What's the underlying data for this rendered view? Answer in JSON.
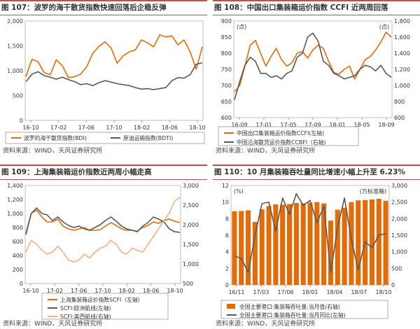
{
  "page": {
    "bg": "#ffffff"
  },
  "panels": [
    {
      "title": "图 107：波罗的海干散货指数快速回落后企稳反弹",
      "source": "资料来源：WIND，天风证券研究所"
    },
    {
      "title": "图 108：中国出口集装箱运价指数 CCFI 近两周回落",
      "source": "资料来源：WIND，天风证券研究所"
    },
    {
      "title": "图 109：上海集装箱运价指数近两周小幅走高",
      "source": "资料来源：WIND，天风证券研究所"
    },
    {
      "title": "图 110：10 月集装箱吞吐量同比增速小幅上升至 6.23%",
      "source": "资料来源：WIND，天风证券研究所"
    }
  ],
  "chart_data": [
    {
      "type": "line",
      "x_ticks": [
        "16-10",
        "17-02",
        "17-06",
        "17-10",
        "18-02",
        "18-06",
        "18-10"
      ],
      "ylim": [
        0,
        2000
      ],
      "y_ticks": [
        "0",
        "500",
        "1,000",
        "1,500",
        "2,000"
      ],
      "grid": false,
      "legend_position": "bottom",
      "series": [
        {
          "name": "波罗的海干散货指数(BDI)",
          "color": "#e36c09",
          "values": [
            880,
            1230,
            1180,
            960,
            920,
            1220,
            1100,
            860,
            880,
            930,
            1080,
            1350,
            1490,
            1580,
            1460,
            1150,
            1300,
            1380,
            1420,
            1620,
            1560,
            1480,
            1720,
            1680,
            1700,
            1520,
            1620,
            1380,
            1030,
            1480
          ]
        },
        {
          "name": "原油运输指数(BDTI)",
          "color": "#595959",
          "values": [
            780,
            930,
            980,
            900,
            870,
            830,
            870,
            820,
            780,
            720,
            740,
            700,
            760,
            800,
            770,
            740,
            720,
            700,
            660,
            630,
            640,
            620,
            640,
            660,
            800,
            860,
            850,
            920,
            1130,
            1160
          ]
        }
      ]
    },
    {
      "type": "line",
      "x_ticks": [
        "16-09",
        "17-01",
        "17-05",
        "17-09",
        "18-01",
        "18-05",
        "18-09"
      ],
      "ylim_left": [
        600,
        900
      ],
      "ylim_right": [
        600,
        1800
      ],
      "y_ticks_left": [
        "600",
        "650",
        "700",
        "750",
        "800",
        "850",
        "900"
      ],
      "y_ticks_right": [
        "600",
        "800",
        "1,000",
        "1,200",
        "1,400",
        "1,600",
        "1,800"
      ],
      "unit_left": "(点)",
      "unit_right": "(点)",
      "grid": false,
      "legend_position": "bottom",
      "series": [
        {
          "name": "中国出口集装箱运价指数CCFI(左轴)",
          "axis": "left",
          "color": "#e36c09",
          "values": [
            680,
            700,
            760,
            825,
            840,
            800,
            760,
            790,
            815,
            780,
            760,
            770,
            800,
            805,
            785,
            810,
            825,
            815,
            775,
            740,
            735,
            750,
            760,
            720,
            750,
            780,
            790,
            810,
            835,
            865,
            850
          ]
        },
        {
          "name": "中国沿海散货运价指数CCBFI（右轴)",
          "axis": "right",
          "color": "#595959",
          "values": [
            820,
            1050,
            1250,
            1350,
            1300,
            1150,
            1150,
            1100,
            1120,
            1080,
            1150,
            1180,
            1350,
            1400,
            1600,
            1650,
            1550,
            1300,
            1250,
            1150,
            1120,
            1080,
            1100,
            1120,
            1200,
            1250,
            1230,
            1180,
            1250,
            1150,
            1100
          ]
        }
      ]
    },
    {
      "type": "line",
      "x_ticks": [
        "16-10",
        "17-02",
        "17-06",
        "17-10",
        "18-02",
        "18-06",
        "18-10"
      ],
      "ylim_left": [
        0,
        1400
      ],
      "ylim_right": [
        500,
        3000
      ],
      "y_ticks_left": [
        "0",
        "200",
        "400",
        "600",
        "800",
        "1,000",
        "1,200",
        "1,400"
      ],
      "y_ticks_right": [
        "500",
        "1,000",
        "1,500",
        "2,000",
        "2,500",
        "3,000"
      ],
      "grid": false,
      "legend_position": "bottom",
      "series": [
        {
          "name": "上海集装箱运价指数SCFI（左轴）",
          "axis": "left",
          "color": "#e36c09",
          "values": [
            720,
            1000,
            1050,
            950,
            880,
            880,
            920,
            820,
            780,
            760,
            780,
            800,
            760,
            760,
            770,
            820,
            870,
            830,
            780,
            760,
            760,
            750,
            800,
            830,
            880,
            860,
            900,
            920,
            890,
            870
          ]
        },
        {
          "name": "SCFI:欧洲航线(左轴)",
          "axis": "left",
          "color": "#595959",
          "values": [
            700,
            1000,
            1080,
            1000,
            980,
            900,
            950,
            880,
            830,
            800,
            820,
            780,
            760,
            800,
            840,
            900,
            950,
            890,
            820,
            780,
            760,
            740,
            820,
            870,
            950,
            920,
            880,
            780,
            740,
            730
          ]
        },
        {
          "name": "SCFI:美西航线(右轴)",
          "axis": "right",
          "color": "#f4b183",
          "values": [
            1300,
            1600,
            1500,
            1350,
            1250,
            1300,
            1450,
            1300,
            1100,
            1050,
            1100,
            1250,
            1150,
            1300,
            1400,
            1450,
            1600,
            1500,
            1300,
            1250,
            1400,
            1350,
            1300,
            1500,
            1700,
            1900,
            2100,
            2300,
            2600,
            2700
          ]
        }
      ]
    },
    {
      "type": "bar",
      "x_ticks": [
        "16/11",
        "17/03",
        "17/06",
        "18/01",
        "18/04",
        "18/07",
        "18/10"
      ],
      "ylim_left": [
        0,
        12
      ],
      "ylim_right": [
        0,
        3000
      ],
      "y_ticks_left": [
        "0",
        "2",
        "4",
        "6",
        "8",
        "10",
        "12"
      ],
      "y_ticks_right": [
        "0",
        "500",
        "1,000",
        "1,500",
        "2,000",
        "2,500",
        "3,000"
      ],
      "unit_left": "(%)",
      "unit_right": "(万标准箱)",
      "grid": false,
      "legend_position": "bottom",
      "series": [
        {
          "name": "全国主要港口:集装箱吞吐量:当月值(右轴)",
          "axis": "right",
          "kind": "bar",
          "color": "#e36c09",
          "values": [
            2220,
            2230,
            2250,
            1900,
            2280,
            2380,
            2430,
            2420,
            2440,
            2470,
            2460,
            2480,
            2500,
            2460,
            1940,
            2270,
            2330,
            2500,
            2550,
            2560,
            2580,
            2600,
            2540
          ]
        },
        {
          "name": "全国主要港口:集装箱吞吐量:当月同比(左轴)",
          "axis": "left",
          "kind": "line",
          "color": "#595959",
          "values": [
            3.5,
            3.2,
            1.5,
            6.0,
            9.8,
            10.0,
            6.5,
            10.5,
            8.5,
            11.0,
            9.6,
            10.2,
            7.5,
            9.5,
            1.5,
            7.0,
            10.5,
            5.5,
            1.8,
            5.2,
            4.5,
            6.0,
            6.2
          ]
        }
      ]
    }
  ]
}
